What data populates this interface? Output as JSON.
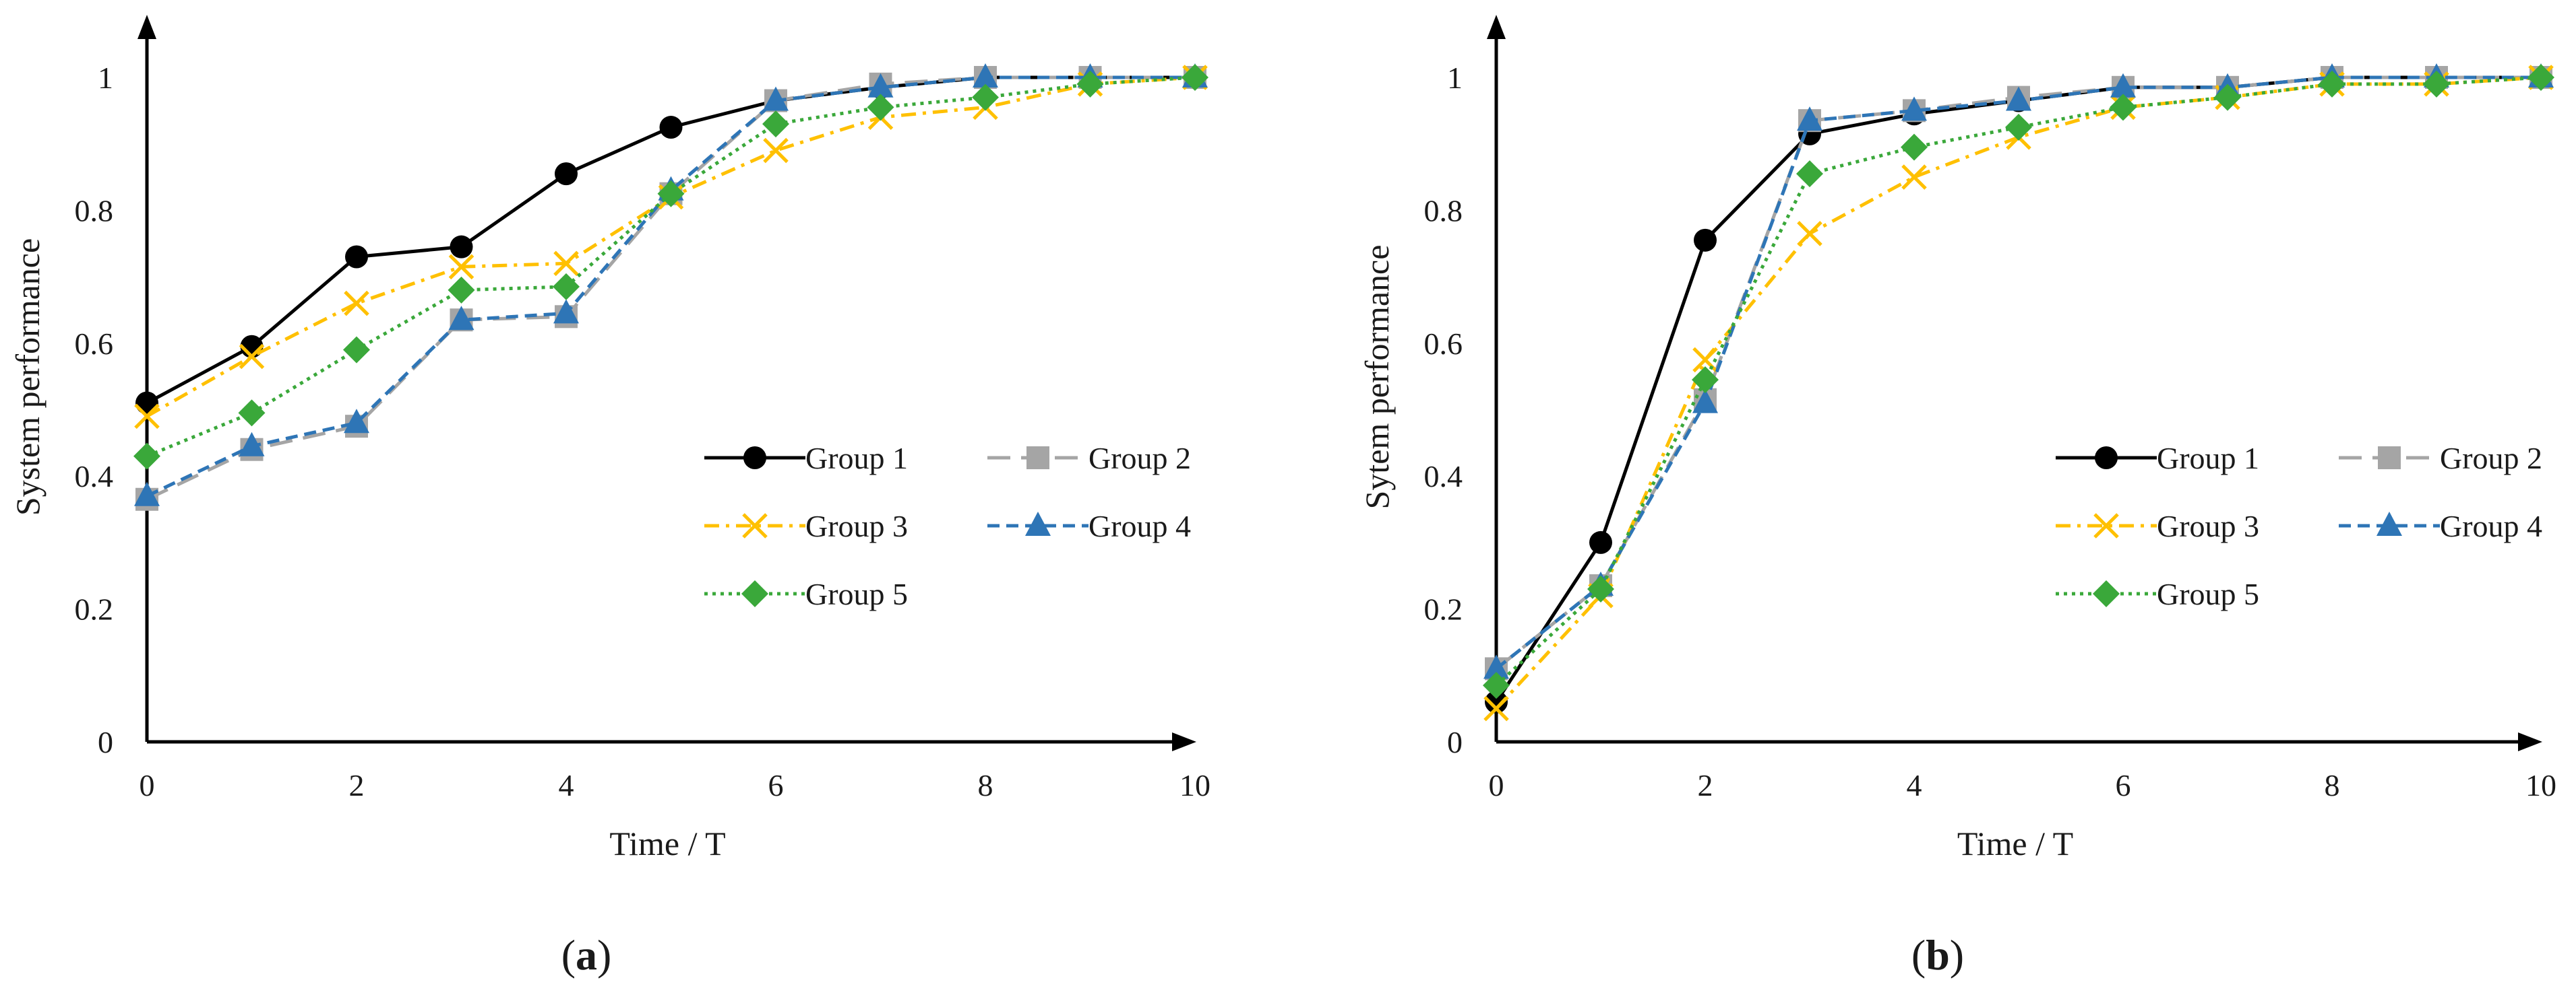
{
  "chart_data": [
    {
      "type": "line",
      "panel_label": "a",
      "caption_open": "(",
      "caption_close": ")",
      "xlabel": "Time / T",
      "ylabel": "System performance",
      "xlim": [
        0,
        10
      ],
      "ylim": [
        0,
        1.08
      ],
      "xticks": [
        0,
        2,
        4,
        6,
        8,
        10
      ],
      "yticks": [
        0,
        0.2,
        0.4,
        0.6,
        0.8,
        1
      ],
      "ytick_labels": [
        "0",
        "0.2",
        "0.4",
        "0.6",
        "0.8",
        "1"
      ],
      "legend_position": "center-right",
      "x": [
        0,
        1,
        2,
        3,
        4,
        5,
        6,
        7,
        8,
        9,
        10
      ],
      "series": [
        {
          "name": "Group 1",
          "values": [
            0.51,
            0.595,
            0.73,
            0.745,
            0.855,
            0.925,
            0.965,
            0.985,
            1.0,
            1.0,
            1.0
          ]
        },
        {
          "name": "Group 2",
          "values": [
            0.365,
            0.44,
            0.475,
            0.635,
            0.64,
            0.825,
            0.965,
            0.99,
            1.0,
            1.0,
            1.0
          ]
        },
        {
          "name": "Group 3",
          "values": [
            0.49,
            0.58,
            0.66,
            0.715,
            0.72,
            0.82,
            0.89,
            0.94,
            0.955,
            0.99,
            1.0
          ]
        },
        {
          "name": "Group 4",
          "values": [
            0.37,
            0.445,
            0.48,
            0.635,
            0.645,
            0.83,
            0.965,
            0.985,
            1.0,
            1.0,
            1.0
          ]
        },
        {
          "name": "Group 5",
          "values": [
            0.43,
            0.495,
            0.59,
            0.68,
            0.685,
            0.825,
            0.93,
            0.955,
            0.97,
            0.99,
            1.0
          ]
        }
      ]
    },
    {
      "type": "line",
      "panel_label": "b",
      "caption_open": "(",
      "caption_close": ")",
      "xlabel": "Time / T",
      "ylabel": "Sytem performance",
      "xlim": [
        0,
        10
      ],
      "ylim": [
        0,
        1.08
      ],
      "xticks": [
        0,
        2,
        4,
        6,
        8,
        10
      ],
      "yticks": [
        0,
        0.2,
        0.4,
        0.6,
        0.8,
        1
      ],
      "ytick_labels": [
        "0",
        "0.2",
        "0.4",
        "0.6",
        "0.8",
        "1"
      ],
      "legend_position": "center-right",
      "x": [
        0,
        1,
        2,
        3,
        4,
        5,
        6,
        7,
        8,
        9,
        10
      ],
      "series": [
        {
          "name": "Group 1",
          "values": [
            0.06,
            0.3,
            0.755,
            0.915,
            0.945,
            0.965,
            0.985,
            0.985,
            1.0,
            1.0,
            1.0
          ]
        },
        {
          "name": "Group 2",
          "values": [
            0.11,
            0.235,
            0.515,
            0.935,
            0.95,
            0.97,
            0.985,
            0.985,
            1.0,
            1.0,
            1.0
          ]
        },
        {
          "name": "Group 3",
          "values": [
            0.05,
            0.22,
            0.575,
            0.765,
            0.85,
            0.91,
            0.955,
            0.97,
            0.99,
            0.99,
            1.0
          ]
        },
        {
          "name": "Group 4",
          "values": [
            0.11,
            0.235,
            0.51,
            0.935,
            0.95,
            0.965,
            0.985,
            0.985,
            1.0,
            1.0,
            1.0
          ]
        },
        {
          "name": "Group 5",
          "values": [
            0.085,
            0.23,
            0.545,
            0.855,
            0.895,
            0.925,
            0.955,
            0.97,
            0.99,
            0.99,
            1.0
          ]
        }
      ]
    }
  ],
  "series_styles": [
    {
      "color": "#000000",
      "marker": "circle",
      "dash": ""
    },
    {
      "color": "#a5a5a5",
      "marker": "square",
      "dash": "34,16"
    },
    {
      "color": "#ffc000",
      "marker": "x",
      "dash": "22,10,5,10"
    },
    {
      "color": "#2e75b6",
      "marker": "triangle",
      "dash": "18,10"
    },
    {
      "color": "#3aa83a",
      "marker": "diamond",
      "dash": "5,7"
    }
  ],
  "axis_color": "#000000"
}
